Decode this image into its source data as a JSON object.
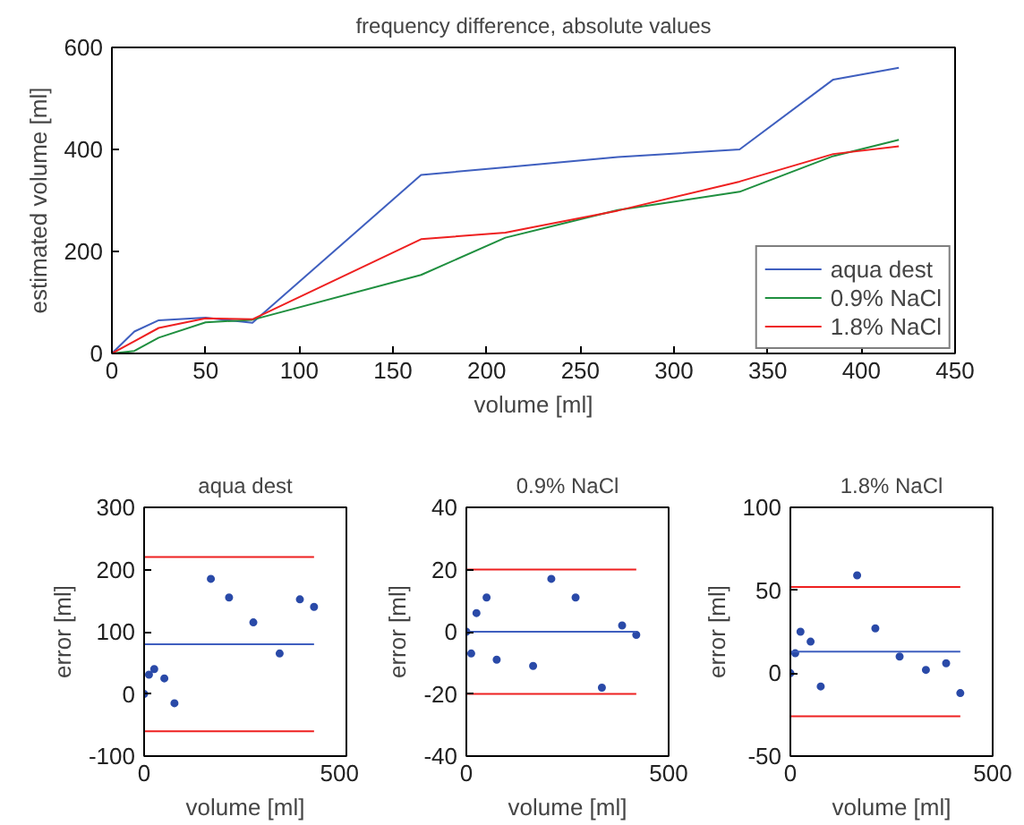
{
  "chart_data": [
    {
      "type": "line",
      "title": "frequency difference, absolute values",
      "xlabel": "volume [ml]",
      "ylabel": "estimated volume [ml]",
      "x": [
        0,
        12,
        25,
        50,
        75,
        165,
        210,
        270,
        335,
        385,
        420
      ],
      "series": [
        {
          "name": "aqua dest",
          "color": "#3f5fbf",
          "values": [
            0,
            43,
            65,
            70,
            60,
            350,
            365,
            385,
            400,
            537,
            560
          ]
        },
        {
          "name": "0.9% NaCl",
          "color": "#1f8f3f",
          "values": [
            0,
            5,
            31,
            61,
            66,
            154,
            227,
            281,
            317,
            387,
            419
          ]
        },
        {
          "name": "1.8% NaCl",
          "color": "#ee2020",
          "values": [
            0,
            24,
            50,
            69,
            67,
            224,
            237,
            280,
            337,
            391,
            406
          ]
        }
      ],
      "xlim": [
        0,
        450
      ],
      "xticks": [
        0,
        50,
        100,
        150,
        200,
        250,
        300,
        350,
        400,
        450
      ],
      "ylim": [
        0,
        600
      ],
      "yticks": [
        0,
        200,
        400,
        600
      ],
      "legend": "bottom right",
      "grid": false
    },
    {
      "type": "scatter",
      "title": "aqua dest",
      "xlabel": "volume [ml]",
      "ylabel": "error [ml]",
      "marker": "circle",
      "x": [
        0,
        12,
        25,
        50,
        75,
        165,
        210,
        270,
        335,
        385,
        420
      ],
      "series": [
        {
          "color": "#2a4aa8",
          "values": [
            0,
            31,
            40,
            25,
            -15,
            185,
            155,
            115,
            65,
            152,
            140
          ]
        }
      ],
      "ref_lines": [
        {
          "axis": "y",
          "value": 80,
          "color": "#3f5fbf"
        },
        {
          "axis": "y",
          "value": 220,
          "color": "#ee2020"
        },
        {
          "axis": "y",
          "value": -60,
          "color": "#ee2020"
        }
      ],
      "xlim": [
        0,
        500
      ],
      "xticks": [
        0,
        500
      ],
      "ylim": [
        -100,
        300
      ],
      "yticks": [
        -100,
        0,
        100,
        200,
        300
      ],
      "grid": false
    },
    {
      "type": "scatter",
      "title": "0.9% NaCl",
      "xlabel": "volume [ml]",
      "ylabel": "error [ml]",
      "marker": "circle",
      "x": [
        0,
        12,
        25,
        50,
        75,
        165,
        210,
        270,
        335,
        385,
        420
      ],
      "series": [
        {
          "color": "#2a4aa8",
          "values": [
            0,
            -7,
            6,
            11,
            -9,
            -11,
            17,
            11,
            -18,
            2,
            -1
          ]
        }
      ],
      "ref_lines": [
        {
          "axis": "y",
          "value": 0,
          "color": "#3f5fbf"
        },
        {
          "axis": "y",
          "value": 20,
          "color": "#ee2020"
        },
        {
          "axis": "y",
          "value": -20,
          "color": "#ee2020"
        }
      ],
      "xlim": [
        0,
        500
      ],
      "xticks": [
        0,
        500
      ],
      "ylim": [
        -40,
        40
      ],
      "yticks": [
        -40,
        -20,
        0,
        20,
        40
      ],
      "grid": false
    },
    {
      "type": "scatter",
      "title": "1.8% NaCl",
      "xlabel": "volume [ml]",
      "ylabel": "error [ml]",
      "marker": "circle",
      "x": [
        0,
        12,
        25,
        50,
        75,
        165,
        210,
        270,
        335,
        385,
        420
      ],
      "series": [
        {
          "color": "#2a4aa8",
          "values": [
            0,
            12,
            25,
            19,
            -8,
            59,
            27,
            10,
            2,
            6,
            -12
          ]
        }
      ],
      "ref_lines": [
        {
          "axis": "y",
          "value": 13,
          "color": "#3f5fbf"
        },
        {
          "axis": "y",
          "value": 52,
          "color": "#ee2020"
        },
        {
          "axis": "y",
          "value": -26,
          "color": "#ee2020"
        }
      ],
      "xlim": [
        0,
        500
      ],
      "xticks": [
        0,
        500
      ],
      "ylim": [
        -50,
        100
      ],
      "yticks": [
        -50,
        0,
        50,
        100
      ],
      "grid": false
    }
  ]
}
